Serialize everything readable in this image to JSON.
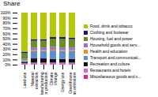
{
  "chart_data": {
    "type": "bar",
    "stacked": true,
    "title": "Share",
    "categories": [
      "Land use",
      "Material\nextraction",
      "Manufacturing\nor production",
      "Climate\nchange",
      "Energy use",
      "Greenhouse\ngas emissions"
    ],
    "series": [
      {
        "name": "Miscellaneous goods and s...",
        "color": "#e91e8c",
        "values": [
          1,
          1,
          1,
          1,
          1,
          1
        ]
      },
      {
        "name": "Restaurants and hotels",
        "color": "#cc66cc",
        "values": [
          2,
          3,
          3,
          3,
          3,
          3
        ]
      },
      {
        "name": "Recreation and culture",
        "color": "#111111",
        "values": [
          2,
          8,
          8,
          7,
          7,
          7
        ]
      },
      {
        "name": "Transport and communicati...",
        "color": "#5b8dd9",
        "values": [
          3,
          14,
          14,
          16,
          15,
          15
        ]
      },
      {
        "name": "Health and education",
        "color": "#ff8c00",
        "values": [
          1,
          2,
          2,
          2,
          2,
          2
        ]
      },
      {
        "name": "Household goods and serv...",
        "color": "#9370db",
        "values": [
          2,
          5,
          5,
          5,
          5,
          5
        ]
      },
      {
        "name": "Housing, fuel and power",
        "color": "#6b8e23",
        "values": [
          11,
          13,
          13,
          16,
          17,
          16
        ]
      },
      {
        "name": "Clothing and footwear",
        "color": "#191970",
        "values": [
          3,
          3,
          3,
          3,
          3,
          3
        ]
      },
      {
        "name": "Food, drink and tobacco",
        "color": "#b5c900",
        "values": [
          75,
          51,
          51,
          47,
          47,
          48
        ]
      }
    ],
    "ylim": [
      0,
      100
    ],
    "yticks": [
      {
        "value": 0,
        "label": "0%"
      },
      {
        "value": 10,
        "label": "10%"
      },
      {
        "value": 20,
        "label": "20%"
      },
      {
        "value": 30,
        "label": "30%"
      },
      {
        "value": 40,
        "label": "40%"
      },
      {
        "value": 50,
        "label": "50%"
      },
      {
        "value": 60,
        "label": "60%"
      },
      {
        "value": 70,
        "label": "70%"
      },
      {
        "value": 80,
        "label": "80%"
      },
      {
        "value": 90,
        "label": "90%"
      },
      {
        "value": 100,
        "label": "100%"
      }
    ],
    "grid": false,
    "legend": "right"
  }
}
